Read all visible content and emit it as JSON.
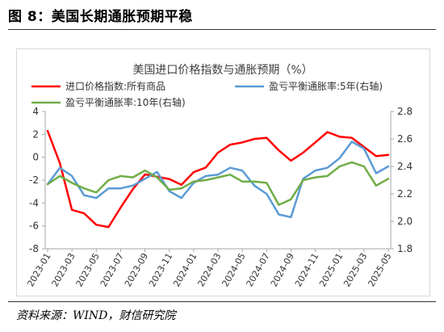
{
  "figure_label": "图 8：美国长期通胀预期平稳",
  "source_note": "资料来源：WIND，财信研究院",
  "chart_data": {
    "type": "line",
    "title": "美国进口价格指数与通胀预期（%）",
    "x": [
      "2023-01",
      "2023-02",
      "2023-03",
      "2023-04",
      "2023-05",
      "2023-06",
      "2023-07",
      "2023-08",
      "2023-09",
      "2023-10",
      "2023-11",
      "2023-12",
      "2024-01",
      "2024-02",
      "2024-03",
      "2024-04",
      "2024-05",
      "2024-06",
      "2024-07",
      "2024-08",
      "2024-09",
      "2024-10",
      "2024-11",
      "2024-12",
      "2025-01",
      "2025-02",
      "2025-03",
      "2025-04",
      "2025-05"
    ],
    "x_tick_labels": [
      "2023-01",
      "2023-03",
      "2023-05",
      "2023-07",
      "2023-09",
      "2023-11",
      "2024-01",
      "2024-03",
      "2024-05",
      "2024-07",
      "2024-09",
      "2024-11",
      "2025-01",
      "2025-03",
      "2025-05"
    ],
    "y_left": {
      "min": -8,
      "max": 4,
      "ticks": [
        "4",
        "2",
        "0",
        "-2",
        "-4",
        "-6",
        "-8"
      ]
    },
    "y_right": {
      "min": 1.8,
      "max": 2.8,
      "ticks": [
        "2.8",
        "2.6",
        "2.4",
        "2.2",
        "2.0",
        "1.8"
      ]
    },
    "grid": false,
    "legend": "top",
    "series": [
      {
        "name": "进口价格指数:所有商品",
        "axis": "left",
        "color": "#ff0000",
        "values": [
          2.3,
          -0.5,
          -4.6,
          -4.9,
          -5.9,
          -6.1,
          -4.4,
          -2.8,
          -1.5,
          -1.7,
          -1.9,
          -2.4,
          -1.3,
          -0.9,
          0.4,
          1.1,
          1.3,
          1.6,
          1.7,
          0.6,
          -0.3,
          0.4,
          1.3,
          2.2,
          1.8,
          1.7,
          0.9,
          0.1,
          0.2
        ]
      },
      {
        "name": "盈亏平衡通胀率:5年(右轴)",
        "axis": "right",
        "color": "#5b9bd5",
        "values": [
          2.27,
          2.39,
          2.33,
          2.19,
          2.17,
          2.24,
          2.24,
          2.26,
          2.31,
          2.36,
          2.22,
          2.17,
          2.28,
          2.33,
          2.34,
          2.39,
          2.37,
          2.26,
          2.2,
          2.05,
          2.03,
          2.31,
          2.37,
          2.39,
          2.46,
          2.58,
          2.53,
          2.35,
          2.4
        ]
      },
      {
        "name": "盈亏平衡通胀率:10年(右轴)",
        "axis": "right",
        "color": "#70ad47",
        "values": [
          2.27,
          2.33,
          2.28,
          2.24,
          2.21,
          2.3,
          2.33,
          2.32,
          2.37,
          2.32,
          2.23,
          2.24,
          2.29,
          2.3,
          2.32,
          2.34,
          2.29,
          2.29,
          2.28,
          2.12,
          2.16,
          2.3,
          2.32,
          2.33,
          2.4,
          2.43,
          2.4,
          2.26,
          2.31
        ]
      }
    ]
  }
}
